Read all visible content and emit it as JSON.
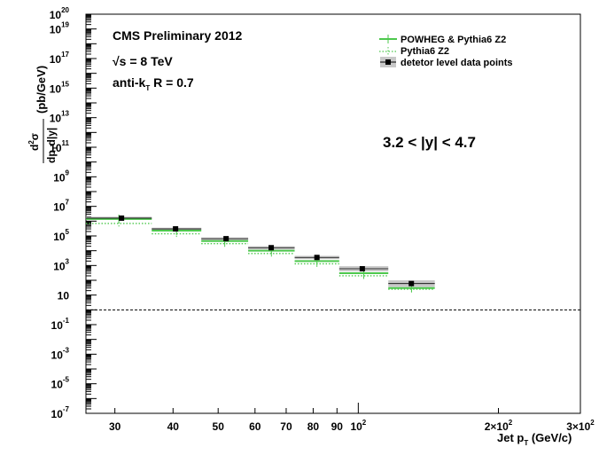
{
  "chart_data": {
    "type": "scatter",
    "title": "CMS Preliminary 2012",
    "annotations": {
      "energy": "√s = 8 TeV",
      "algo_prefix": "anti-k",
      "algo_sub": "T",
      "algo_suffix": " R = 0.7",
      "rapidity": "3.2 < |y| < 4.7"
    },
    "xlabel": "Jet p_T (GeV/c)",
    "xlabel_main": "Jet p",
    "xlabel_sub": "T",
    "xlabel_unit": " (GeV/c)",
    "ylabel": "d²σ/dp_T d|y| (pb/GeV)",
    "ylabel_unit": "(pb/GeV)",
    "x_scale": "log",
    "y_scale": "log",
    "xlim": [
      26,
      300
    ],
    "ylim": [
      1e-07,
      1e+20
    ],
    "x_ticks": [
      {
        "v": 30,
        "t": "30"
      },
      {
        "v": 40,
        "t": "40"
      },
      {
        "v": 50,
        "t": "50"
      },
      {
        "v": 60,
        "t": "60"
      },
      {
        "v": 70,
        "t": "70"
      },
      {
        "v": 80,
        "t": "80"
      },
      {
        "v": 90,
        "t": "90"
      },
      {
        "v": 100,
        "t": "10",
        "sup": "2"
      },
      {
        "v": 200,
        "t": "2×10",
        "sup": "2"
      },
      {
        "v": 300,
        "t": "3×10",
        "sup": "2"
      }
    ],
    "y_ticks": [
      {
        "v": 1e+20,
        "t": "10",
        "sup": "20"
      },
      {
        "v": 1e+19,
        "t": "10",
        "sup": "19"
      },
      {
        "v": 1e+17,
        "t": "10",
        "sup": "17"
      },
      {
        "v": 1000000000000000.0,
        "t": "10",
        "sup": "15"
      },
      {
        "v": 10000000000000.0,
        "t": "10",
        "sup": "13"
      },
      {
        "v": 100000000000.0,
        "t": "10",
        "sup": "11"
      },
      {
        "v": 1000000000.0,
        "t": "10",
        "sup": "9"
      },
      {
        "v": 10000000.0,
        "t": "10",
        "sup": "7"
      },
      {
        "v": 100000.0,
        "t": "10",
        "sup": "5"
      },
      {
        "v": 1000.0,
        "t": "10",
        "sup": "3"
      },
      {
        "v": 10,
        "t": "10",
        "sup": ""
      },
      {
        "v": 0.1,
        "t": "10",
        "sup": "-1"
      },
      {
        "v": 0.001,
        "t": "10",
        "sup": "-3"
      },
      {
        "v": 1e-05,
        "t": "10",
        "sup": "-5"
      },
      {
        "v": 1e-07,
        "t": "10",
        "sup": "-7"
      }
    ],
    "reference_line": 1,
    "legend_position": "top-right",
    "colors": {
      "powheg": "#4dc84d",
      "pythia": "#4dc84d",
      "data": "#000000",
      "band": "#c8c8c8"
    },
    "series": [
      {
        "name": "POWHEG & Pythia6 Z2",
        "style": "solid",
        "points": [
          {
            "xlo": 26,
            "xhi": 36,
            "y": 1400000.0
          },
          {
            "xlo": 36,
            "xhi": 46,
            "y": 230000.0
          },
          {
            "xlo": 46,
            "xhi": 58,
            "y": 45000.0
          },
          {
            "xlo": 58,
            "xhi": 73,
            "y": 10000.0
          },
          {
            "xlo": 73,
            "xhi": 91,
            "y": 2000.0
          },
          {
            "xlo": 91,
            "xhi": 116,
            "y": 300.0
          },
          {
            "xlo": 116,
            "xhi": 146,
            "y": 30.0
          }
        ]
      },
      {
        "name": "Pythia6 Z2",
        "style": "dotted",
        "points": [
          {
            "xlo": 26,
            "xhi": 36,
            "y": 700000.0
          },
          {
            "xlo": 36,
            "xhi": 46,
            "y": 140000.0
          },
          {
            "xlo": 46,
            "xhi": 58,
            "y": 30000.0
          },
          {
            "xlo": 58,
            "xhi": 73,
            "y": 6500.0
          },
          {
            "xlo": 73,
            "xhi": 91,
            "y": 1300.0
          },
          {
            "xlo": 91,
            "xhi": 116,
            "y": 200.0
          },
          {
            "xlo": 116,
            "xhi": 146,
            "y": 25.0
          }
        ]
      },
      {
        "name": "detetor level data points",
        "style": "marker-band",
        "points": [
          {
            "x": 31,
            "xlo": 26,
            "xhi": 36,
            "y": 1600000.0,
            "ylo": 1300000.0,
            "yhi": 2000000.0
          },
          {
            "x": 40.5,
            "xlo": 36,
            "xhi": 46,
            "y": 300000.0,
            "ylo": 240000.0,
            "yhi": 360000.0
          },
          {
            "x": 52,
            "xlo": 46,
            "xhi": 58,
            "y": 65000.0,
            "ylo": 50000.0,
            "yhi": 80000.0
          },
          {
            "x": 65,
            "xlo": 58,
            "xhi": 73,
            "y": 16000.0,
            "ylo": 12000.0,
            "yhi": 20000.0
          },
          {
            "x": 81.5,
            "xlo": 73,
            "xhi": 91,
            "y": 3500.0,
            "ylo": 2700.0,
            "yhi": 4500.0
          },
          {
            "x": 102,
            "xlo": 91,
            "xhi": 116,
            "y": 600.0,
            "ylo": 400.0,
            "yhi": 900.0
          },
          {
            "x": 130,
            "xlo": 116,
            "xhi": 146,
            "y": 60.0,
            "ylo": 35.0,
            "yhi": 100.0
          }
        ]
      }
    ]
  }
}
